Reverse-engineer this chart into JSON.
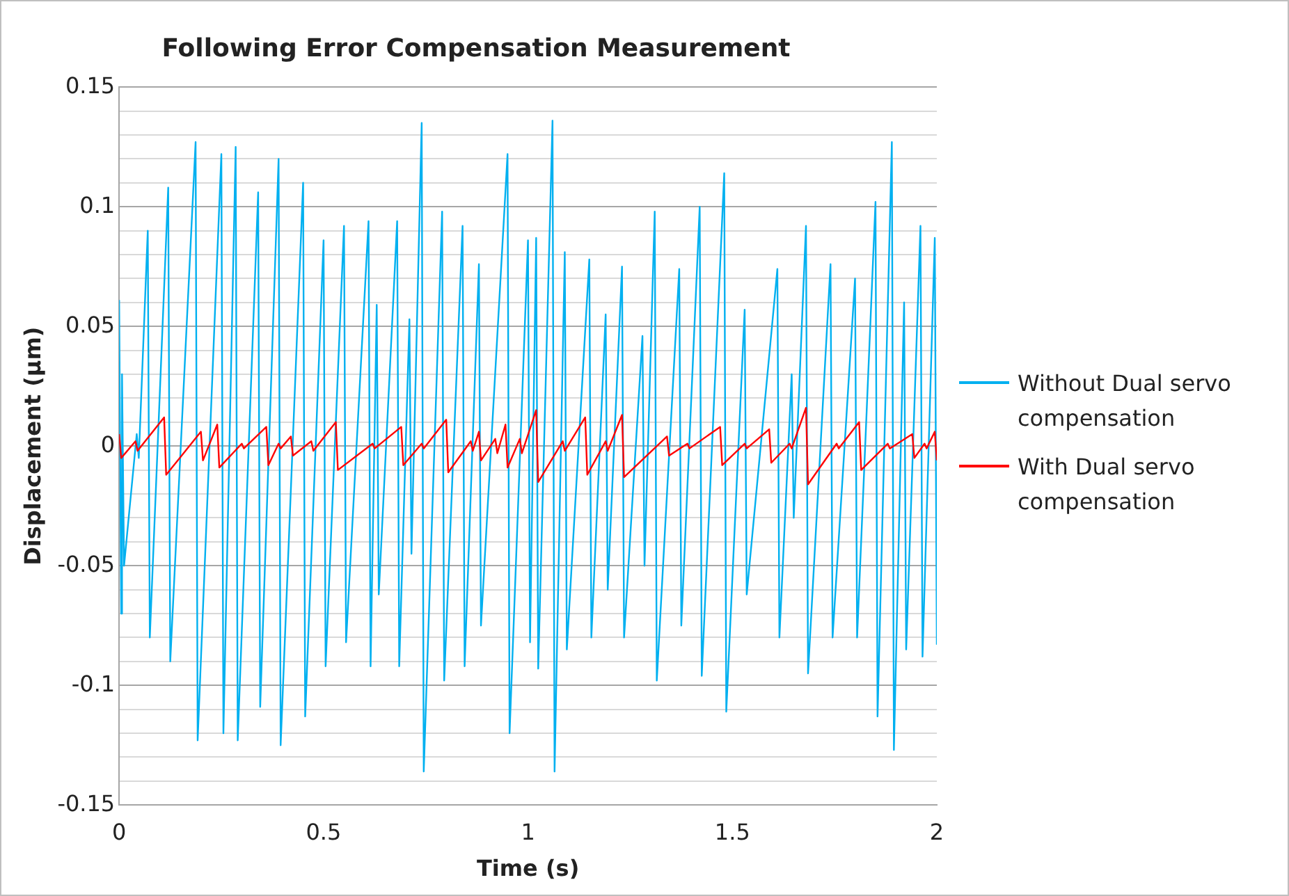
{
  "chart_data": {
    "type": "line",
    "title": "Following Error Compensation Measurement",
    "xlabel": "Time (s)",
    "ylabel": "Displacement (µm)",
    "xlim": [
      0,
      2
    ],
    "xticks": [
      0,
      0.5,
      1,
      1.5,
      2
    ],
    "ylim": [
      -0.15,
      0.15
    ],
    "yticks": [
      -0.15,
      {
        "value": -0.14,
        "label": null
      },
      {
        "value": -0.13,
        "label": null
      },
      {
        "value": -0.12,
        "label": null
      },
      {
        "value": -0.11,
        "label": null
      },
      -0.1,
      {
        "value": -0.09,
        "label": null
      },
      {
        "value": -0.08,
        "label": null
      },
      {
        "value": -0.07,
        "label": null
      },
      {
        "value": -0.06,
        "label": null
      },
      -0.05,
      {
        "value": -0.04,
        "label": null
      },
      {
        "value": -0.03,
        "label": null
      },
      {
        "value": -0.02,
        "label": null
      },
      {
        "value": -0.01,
        "label": null
      },
      0,
      {
        "value": 0.01,
        "label": null
      },
      {
        "value": 0.02,
        "label": null
      },
      {
        "value": 0.03,
        "label": null
      },
      {
        "value": 0.04,
        "label": null
      },
      0.05,
      {
        "value": 0.06,
        "label": null
      },
      {
        "value": 0.07,
        "label": null
      },
      {
        "value": 0.08,
        "label": null
      },
      {
        "value": 0.09,
        "label": null
      },
      0.1,
      {
        "value": 0.11,
        "label": null
      },
      {
        "value": 0.12,
        "label": null
      },
      {
        "value": 0.13,
        "label": null
      },
      {
        "value": 0.14,
        "label": null
      },
      0.15
    ],
    "grid": "y",
    "legend": "right",
    "marker": "none",
    "line_style": "solid",
    "series": [
      {
        "name": "Without Dual servo compensation",
        "color": "#00b0f0",
        "x": [
          0,
          0.005,
          0.007,
          0.012,
          0.043,
          0.048,
          0.07,
          0.075,
          0.12,
          0.125,
          0.187,
          0.192,
          0.25,
          0.255,
          0.285,
          0.29,
          0.34,
          0.345,
          0.39,
          0.395,
          0.45,
          0.455,
          0.5,
          0.505,
          0.55,
          0.555,
          0.61,
          0.615,
          0.63,
          0.635,
          0.68,
          0.685,
          0.71,
          0.715,
          0.74,
          0.745,
          0.79,
          0.795,
          0.84,
          0.845,
          0.88,
          0.885,
          0.95,
          0.955,
          1.0,
          1.005,
          1.02,
          1.025,
          1.06,
          1.065,
          1.09,
          1.095,
          1.15,
          1.155,
          1.19,
          1.195,
          1.23,
          1.235,
          1.28,
          1.285,
          1.31,
          1.315,
          1.37,
          1.375,
          1.42,
          1.425,
          1.48,
          1.485,
          1.53,
          1.535,
          1.61,
          1.615,
          1.645,
          1.65,
          1.68,
          1.685,
          1.74,
          1.745,
          1.8,
          1.805,
          1.85,
          1.855,
          1.89,
          1.895,
          1.92,
          1.925,
          1.96,
          1.965,
          1.995,
          2.0
        ],
        "values": [
          0.061,
          -0.07,
          0.03,
          -0.05,
          0.005,
          -0.005,
          0.09,
          -0.08,
          0.108,
          -0.09,
          0.127,
          -0.123,
          0.122,
          -0.12,
          0.125,
          -0.123,
          0.106,
          -0.109,
          0.12,
          -0.125,
          0.11,
          -0.113,
          0.086,
          -0.092,
          0.092,
          -0.082,
          0.094,
          -0.092,
          0.059,
          -0.062,
          0.094,
          -0.092,
          0.053,
          -0.045,
          0.135,
          -0.136,
          0.098,
          -0.098,
          0.092,
          -0.092,
          0.076,
          -0.075,
          0.122,
          -0.12,
          0.086,
          -0.082,
          0.087,
          -0.093,
          0.136,
          -0.136,
          0.081,
          -0.085,
          0.078,
          -0.08,
          0.055,
          -0.06,
          0.075,
          -0.08,
          0.046,
          -0.05,
          0.098,
          -0.098,
          0.074,
          -0.075,
          0.1,
          -0.096,
          0.114,
          -0.111,
          0.057,
          -0.062,
          0.074,
          -0.08,
          0.03,
          -0.03,
          0.092,
          -0.095,
          0.076,
          -0.08,
          0.07,
          -0.08,
          0.102,
          -0.113,
          0.127,
          -0.127,
          0.06,
          -0.085,
          0.092,
          -0.088,
          0.087,
          -0.083
        ]
      },
      {
        "name": "With Dual servo compensation",
        "color": "#ff0000",
        "x": [
          0,
          0.005,
          0.04,
          0.045,
          0.11,
          0.115,
          0.2,
          0.205,
          0.24,
          0.245,
          0.3,
          0.305,
          0.36,
          0.365,
          0.39,
          0.395,
          0.42,
          0.425,
          0.47,
          0.475,
          0.53,
          0.535,
          0.62,
          0.625,
          0.69,
          0.695,
          0.74,
          0.745,
          0.8,
          0.805,
          0.86,
          0.865,
          0.88,
          0.885,
          0.92,
          0.925,
          0.945,
          0.95,
          0.98,
          0.985,
          1.02,
          1.025,
          1.085,
          1.09,
          1.14,
          1.145,
          1.19,
          1.195,
          1.23,
          1.235,
          1.34,
          1.345,
          1.39,
          1.395,
          1.47,
          1.475,
          1.53,
          1.535,
          1.59,
          1.595,
          1.64,
          1.645,
          1.68,
          1.685,
          1.755,
          1.76,
          1.81,
          1.815,
          1.88,
          1.885,
          1.94,
          1.945,
          1.97,
          1.975,
          1.995,
          2.0
        ],
        "values": [
          0.005,
          -0.005,
          0.002,
          -0.002,
          0.012,
          -0.012,
          0.006,
          -0.006,
          0.009,
          -0.009,
          0.001,
          -0.001,
          0.008,
          -0.008,
          0.001,
          -0.001,
          0.004,
          -0.004,
          0.002,
          -0.002,
          0.01,
          -0.01,
          0.001,
          -0.001,
          0.008,
          -0.008,
          0.001,
          -0.001,
          0.011,
          -0.011,
          0.002,
          -0.002,
          0.006,
          -0.006,
          0.003,
          -0.003,
          0.009,
          -0.009,
          0.003,
          -0.003,
          0.015,
          -0.015,
          0.002,
          -0.002,
          0.012,
          -0.012,
          0.002,
          -0.002,
          0.013,
          -0.013,
          0.004,
          -0.004,
          0.001,
          -0.001,
          0.008,
          -0.008,
          0.001,
          -0.001,
          0.007,
          -0.007,
          0.001,
          -0.001,
          0.016,
          -0.016,
          0.001,
          -0.001,
          0.01,
          -0.01,
          0.001,
          -0.001,
          0.005,
          -0.005,
          0.001,
          -0.001,
          0.006,
          -0.006
        ]
      }
    ]
  }
}
